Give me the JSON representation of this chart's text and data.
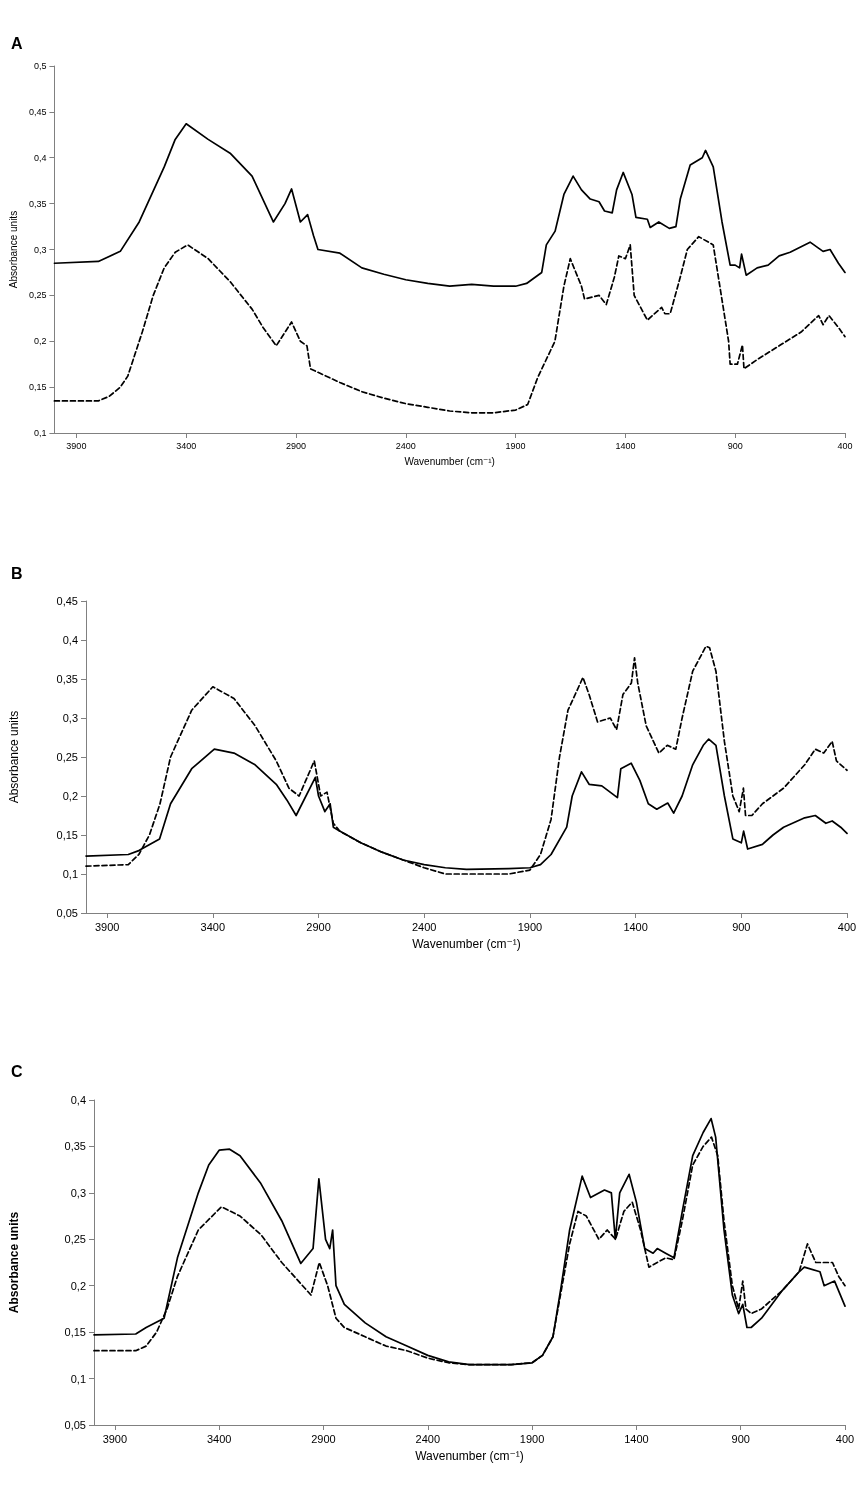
{
  "chart_data": [
    {
      "type": "line",
      "title": "A",
      "xlabel": "Wavenumber (cm⁻¹)",
      "ylabel": "Absorbance units",
      "xlim": [
        4000,
        400
      ],
      "xticks": [
        3900,
        3400,
        2900,
        2400,
        1900,
        1400,
        900,
        400
      ],
      "ylim": [
        0.1,
        0.5
      ],
      "yticks": [
        {
          "value": 0.1,
          "label": "0,1"
        },
        {
          "value": 0.15,
          "label": "0,15"
        },
        {
          "value": 0.2,
          "label": "0,2"
        },
        {
          "value": 0.25,
          "label": "0,25"
        },
        {
          "value": 0.3,
          "label": "0,3"
        },
        {
          "value": 0.35,
          "label": "0,35"
        },
        {
          "value": 0.4,
          "label": "0,4"
        },
        {
          "value": 0.45,
          "label": "0,45"
        },
        {
          "value": 0.5,
          "label": "0,5"
        }
      ],
      "grid": false,
      "marker": "none",
      "series": [
        {
          "color": "#000000",
          "line_style": "solid",
          "x": [
            4000,
            3800,
            3700,
            3614,
            3500,
            3450,
            3400,
            3300,
            3200,
            3100,
            3003,
            2950,
            2920,
            2880,
            2847,
            2820,
            2800,
            2700,
            2600,
            2500,
            2400,
            2300,
            2200,
            2100,
            2000,
            1900,
            1850,
            1781,
            1760,
            1720,
            1680,
            1638,
            1600,
            1560,
            1520,
            1495,
            1460,
            1440,
            1410,
            1370,
            1352,
            1300,
            1287,
            1248,
            1200,
            1170,
            1150,
            1105,
            1050,
            1035,
            1000,
            960,
            923,
            900,
            880,
            871,
            850,
            800,
            750,
            700,
            650,
            600,
            559,
            500,
            468,
            430,
            400
          ],
          "values": [
            0.285,
            0.287,
            0.298,
            0.33,
            0.39,
            0.42,
            0.437,
            0.42,
            0.405,
            0.38,
            0.33,
            0.35,
            0.366,
            0.33,
            0.338,
            0.315,
            0.3,
            0.296,
            0.28,
            0.273,
            0.267,
            0.263,
            0.26,
            0.262,
            0.26,
            0.26,
            0.263,
            0.275,
            0.305,
            0.32,
            0.36,
            0.38,
            0.365,
            0.355,
            0.352,
            0.342,
            0.34,
            0.365,
            0.384,
            0.36,
            0.335,
            0.333,
            0.324,
            0.33,
            0.323,
            0.325,
            0.355,
            0.392,
            0.4,
            0.408,
            0.39,
            0.33,
            0.283,
            0.283,
            0.28,
            0.295,
            0.272,
            0.28,
            0.283,
            0.293,
            0.297,
            0.303,
            0.308,
            0.298,
            0.3,
            0.285,
            0.275
          ]
        },
        {
          "color": "#000000",
          "line_style": "dashed",
          "x": [
            4000,
            3800,
            3750,
            3700,
            3666,
            3600,
            3550,
            3500,
            3450,
            3393,
            3300,
            3200,
            3100,
            3050,
            2990,
            2920,
            2880,
            2850,
            2834,
            2700,
            2600,
            2500,
            2400,
            2300,
            2200,
            2100,
            2000,
            1900,
            1845,
            1800,
            1721,
            1680,
            1651,
            1600,
            1586,
            1520,
            1487,
            1450,
            1430,
            1400,
            1378,
            1360,
            1300,
            1235,
            1220,
            1196,
            1150,
            1118,
            1066,
            1000,
            970,
            930,
            923,
            890,
            867,
            860,
            800,
            700,
            600,
            520,
            500,
            473,
            430,
            400
          ],
          "values": [
            0.135,
            0.135,
            0.14,
            0.15,
            0.162,
            0.21,
            0.25,
            0.28,
            0.297,
            0.305,
            0.29,
            0.265,
            0.235,
            0.215,
            0.195,
            0.221,
            0.2,
            0.195,
            0.17,
            0.155,
            0.145,
            0.138,
            0.132,
            0.128,
            0.124,
            0.122,
            0.122,
            0.125,
            0.131,
            0.16,
            0.2,
            0.26,
            0.29,
            0.26,
            0.246,
            0.25,
            0.24,
            0.27,
            0.293,
            0.29,
            0.305,
            0.25,
            0.223,
            0.237,
            0.23,
            0.23,
            0.27,
            0.3,
            0.314,
            0.305,
            0.26,
            0.2,
            0.175,
            0.175,
            0.196,
            0.17,
            0.18,
            0.195,
            0.21,
            0.228,
            0.218,
            0.228,
            0.215,
            0.205
          ]
        }
      ]
    },
    {
      "type": "line",
      "title": "B",
      "xlabel": "Wavenumber (cm⁻¹)",
      "ylabel": "Absorbance units",
      "xlim": [
        4000,
        400
      ],
      "xticks": [
        3900,
        3400,
        2900,
        2400,
        1900,
        1400,
        900,
        400
      ],
      "ylim": [
        0.05,
        0.45
      ],
      "yticks": [
        {
          "value": 0.05,
          "label": "0,05"
        },
        {
          "value": 0.1,
          "label": "0,1"
        },
        {
          "value": 0.15,
          "label": "0,15"
        },
        {
          "value": 0.2,
          "label": "0,2"
        },
        {
          "value": 0.25,
          "label": "0,25"
        },
        {
          "value": 0.3,
          "label": "0,3"
        },
        {
          "value": 0.35,
          "label": "0,35"
        },
        {
          "value": 0.4,
          "label": "0,4"
        },
        {
          "value": 0.45,
          "label": "0,45"
        }
      ],
      "grid": false,
      "marker": "none",
      "series": [
        {
          "color": "#000000",
          "line_style": "solid",
          "x": [
            4000,
            3800,
            3750,
            3652,
            3600,
            3500,
            3393,
            3300,
            3200,
            3100,
            3050,
            3006,
            2915,
            2900,
            2870,
            2845,
            2830,
            2800,
            2700,
            2600,
            2500,
            2400,
            2300,
            2200,
            2000,
            1900,
            1850,
            1800,
            1726,
            1700,
            1656,
            1620,
            1560,
            1486,
            1470,
            1421,
            1380,
            1340,
            1300,
            1248,
            1220,
            1180,
            1130,
            1080,
            1054,
            1020,
            980,
            940,
            900,
            889,
            870,
            800,
            750,
            700,
            600,
            550,
            500,
            470,
            430,
            400
          ],
          "values": [
            0.123,
            0.125,
            0.13,
            0.145,
            0.19,
            0.235,
            0.26,
            0.255,
            0.24,
            0.215,
            0.195,
            0.175,
            0.224,
            0.2,
            0.18,
            0.19,
            0.16,
            0.155,
            0.14,
            0.128,
            0.118,
            0.112,
            0.108,
            0.106,
            0.107,
            0.108,
            0.112,
            0.125,
            0.16,
            0.2,
            0.231,
            0.215,
            0.213,
            0.198,
            0.235,
            0.242,
            0.22,
            0.19,
            0.183,
            0.191,
            0.178,
            0.2,
            0.24,
            0.265,
            0.273,
            0.265,
            0.2,
            0.145,
            0.14,
            0.155,
            0.132,
            0.138,
            0.15,
            0.16,
            0.172,
            0.175,
            0.165,
            0.168,
            0.16,
            0.152
          ]
        },
        {
          "color": "#000000",
          "line_style": "dashed",
          "x": [
            4000,
            3800,
            3750,
            3700,
            3650,
            3600,
            3500,
            3400,
            3300,
            3200,
            3100,
            3040,
            2992,
            2920,
            2890,
            2860,
            2830,
            2800,
            2700,
            2600,
            2500,
            2400,
            2300,
            2200,
            2000,
            1900,
            1850,
            1800,
            1760,
            1720,
            1649,
            1620,
            1580,
            1520,
            1490,
            1460,
            1420,
            1405,
            1390,
            1350,
            1290,
            1250,
            1210,
            1180,
            1130,
            1067,
            1050,
            1020,
            980,
            940,
            910,
            890,
            880,
            850,
            800,
            700,
            600,
            550,
            510,
            470,
            450,
            400
          ],
          "values": [
            0.11,
            0.112,
            0.125,
            0.15,
            0.19,
            0.25,
            0.31,
            0.34,
            0.325,
            0.29,
            0.245,
            0.21,
            0.2,
            0.245,
            0.2,
            0.205,
            0.165,
            0.155,
            0.14,
            0.128,
            0.118,
            0.108,
            0.1,
            0.1,
            0.1,
            0.105,
            0.125,
            0.17,
            0.25,
            0.31,
            0.352,
            0.33,
            0.295,
            0.3,
            0.285,
            0.33,
            0.345,
            0.377,
            0.345,
            0.29,
            0.255,
            0.265,
            0.26,
            0.3,
            0.36,
            0.392,
            0.39,
            0.36,
            0.27,
            0.2,
            0.18,
            0.21,
            0.175,
            0.175,
            0.19,
            0.21,
            0.24,
            0.26,
            0.255,
            0.27,
            0.245,
            0.233
          ]
        }
      ]
    },
    {
      "type": "line",
      "title": "C",
      "xlabel": "Wavenumber (cm⁻¹)",
      "ylabel": "Absorbance units",
      "xlim": [
        4000,
        400
      ],
      "xticks": [
        3900,
        3400,
        2900,
        2400,
        1900,
        1400,
        900,
        400
      ],
      "ylim": [
        0.05,
        0.4
      ],
      "yticks": [
        {
          "value": 0.05,
          "label": "0,05"
        },
        {
          "value": 0.1,
          "label": "0,1"
        },
        {
          "value": 0.15,
          "label": "0,15"
        },
        {
          "value": 0.2,
          "label": "0,2"
        },
        {
          "value": 0.25,
          "label": "0,25"
        },
        {
          "value": 0.3,
          "label": "0,3"
        },
        {
          "value": 0.35,
          "label": "0,35"
        },
        {
          "value": 0.4,
          "label": "0,4"
        }
      ],
      "grid": false,
      "marker": "none",
      "series": [
        {
          "color": "#000000",
          "line_style": "solid",
          "x": [
            4000,
            3800,
            3750,
            3664,
            3600,
            3500,
            3450,
            3400,
            3350,
            3300,
            3200,
            3100,
            3009,
            2950,
            2922,
            2890,
            2870,
            2856,
            2840,
            2800,
            2700,
            2600,
            2500,
            2400,
            2300,
            2200,
            2000,
            1900,
            1850,
            1800,
            1760,
            1720,
            1660,
            1620,
            1553,
            1520,
            1501,
            1480,
            1435,
            1400,
            1360,
            1320,
            1300,
            1260,
            1220,
            1180,
            1130,
            1080,
            1042,
            1020,
            980,
            940,
            910,
            890,
            870,
            850,
            800,
            750,
            700,
            620,
            595,
            520,
            500,
            450,
            400
          ],
          "values": [
            0.147,
            0.148,
            0.155,
            0.165,
            0.23,
            0.3,
            0.33,
            0.346,
            0.347,
            0.34,
            0.31,
            0.27,
            0.224,
            0.24,
            0.315,
            0.25,
            0.24,
            0.26,
            0.2,
            0.18,
            0.16,
            0.145,
            0.135,
            0.125,
            0.118,
            0.115,
            0.115,
            0.117,
            0.125,
            0.145,
            0.2,
            0.26,
            0.318,
            0.295,
            0.303,
            0.3,
            0.25,
            0.3,
            0.32,
            0.29,
            0.24,
            0.235,
            0.24,
            0.235,
            0.23,
            0.28,
            0.34,
            0.365,
            0.38,
            0.36,
            0.26,
            0.19,
            0.17,
            0.18,
            0.155,
            0.155,
            0.165,
            0.18,
            0.195,
            0.215,
            0.22,
            0.215,
            0.2,
            0.205,
            0.178
          ]
        },
        {
          "color": "#000000",
          "line_style": "dashed",
          "x": [
            4000,
            3800,
            3750,
            3700,
            3650,
            3600,
            3500,
            3389,
            3300,
            3200,
            3100,
            3000,
            2960,
            2920,
            2880,
            2840,
            2800,
            2700,
            2600,
            2500,
            2400,
            2300,
            2200,
            2000,
            1900,
            1850,
            1800,
            1760,
            1720,
            1680,
            1640,
            1580,
            1540,
            1500,
            1460,
            1420,
            1380,
            1340,
            1300,
            1260,
            1220,
            1180,
            1130,
            1080,
            1040,
            1010,
            980,
            940,
            910,
            890,
            875,
            850,
            800,
            700,
            620,
            580,
            540,
            490,
            460,
            430,
            400
          ],
          "values": [
            0.13,
            0.13,
            0.135,
            0.15,
            0.175,
            0.21,
            0.26,
            0.285,
            0.275,
            0.255,
            0.225,
            0.2,
            0.19,
            0.225,
            0.2,
            0.165,
            0.155,
            0.145,
            0.135,
            0.13,
            0.122,
            0.117,
            0.115,
            0.115,
            0.117,
            0.125,
            0.145,
            0.195,
            0.245,
            0.28,
            0.275,
            0.25,
            0.26,
            0.25,
            0.28,
            0.29,
            0.26,
            0.22,
            0.225,
            0.23,
            0.228,
            0.27,
            0.33,
            0.35,
            0.36,
            0.34,
            0.27,
            0.2,
            0.175,
            0.205,
            0.175,
            0.17,
            0.175,
            0.195,
            0.215,
            0.245,
            0.225,
            0.225,
            0.225,
            0.21,
            0.2
          ]
        }
      ]
    }
  ]
}
